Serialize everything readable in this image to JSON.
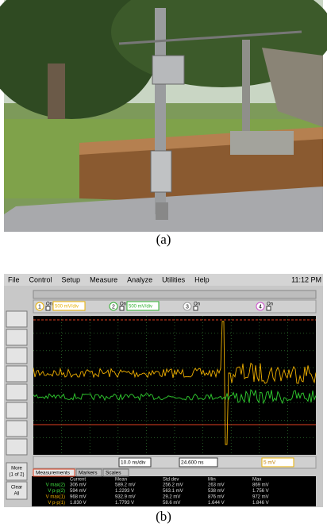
{
  "caption_a": "(a)",
  "caption_b": "(b)",
  "scope": {
    "menu": [
      "File",
      "Control",
      "Setup",
      "Measure",
      "Analyze",
      "Utilities",
      "Help"
    ],
    "clock": "11:12 PM",
    "channels": [
      {
        "number": "1",
        "state": "On",
        "scale": "500 mV/div"
      },
      {
        "number": "2",
        "state": "On",
        "scale": "500 mV/div"
      },
      {
        "number": "3",
        "state": "On"
      },
      {
        "number": "4",
        "state": "On"
      }
    ],
    "more": "More (1 of 2)",
    "clear": "Clear All",
    "timebase": "10.0 ns/div",
    "position": "24.600 ns",
    "trigger": "5 mV",
    "tabs": [
      "Measurements",
      "Markers",
      "Scales"
    ],
    "table": {
      "header": [
        "Current",
        "Mean",
        "Std dev",
        "Min",
        "Max"
      ],
      "rows": [
        [
          "V max(2)",
          "306 mV",
          "589.2 mV",
          "256.2 mV",
          "263 mV",
          "869 mV"
        ],
        [
          "V p-p(2)",
          "594 mV",
          "1.2293 V",
          "563.1 mV",
          "538 mV",
          "1.756 V"
        ],
        [
          "V max(1)",
          "968 mV",
          "932.9 mV",
          "29.2 mV",
          "876 mV",
          "972 mV"
        ],
        [
          "V p-p(1)",
          "1.830 V",
          "1.7793 V",
          "58.6 mV",
          "1.644 V",
          "1.846 V"
        ]
      ]
    }
  }
}
